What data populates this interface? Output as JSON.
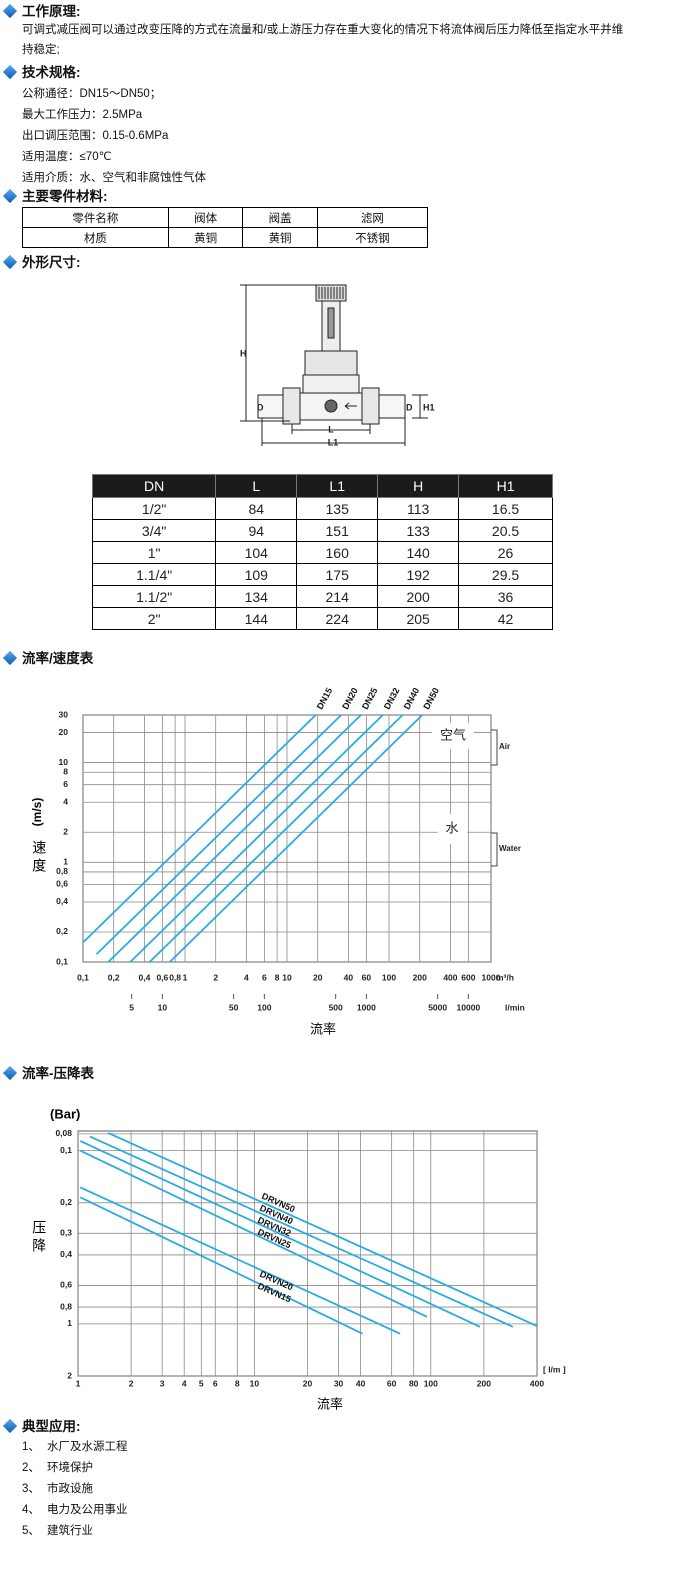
{
  "principle": {
    "heading": "工作原理:",
    "text": "可调式减压阀可以通过改变压降的方式在流量和/或上游压力存在重大变化的情况下将流体阀后压力降低至指定水平并维持稳定;"
  },
  "specs": {
    "heading": "技术规格:",
    "items": [
      "公称通径：DN15～DN50；",
      "最大工作压力：2.5MPa",
      "出口调压范围：0.15-0.6MPa",
      "适用温度：≤70℃",
      "适用介质：水、空气和非腐蚀性气体"
    ]
  },
  "materials": {
    "heading": "主要零件材料:",
    "rows": [
      [
        "零件名称",
        "阀体",
        "阀盖",
        "滤网"
      ],
      [
        "材质",
        "黄铜",
        "黄铜",
        "不锈钢"
      ]
    ]
  },
  "dimensions": {
    "heading": "外形尺寸:",
    "diagram_labels": [
      "H",
      "D",
      "L",
      "L1",
      "D",
      "H1"
    ],
    "table": {
      "rows": [
        [
          "DN",
          "L",
          "L1",
          "H",
          "H1"
        ],
        [
          "1/2\"",
          "84",
          "135",
          "113",
          "16.5"
        ],
        [
          "3/4\"",
          "94",
          "151",
          "133",
          "20.5"
        ],
        [
          "1\"",
          "104",
          "160",
          "140",
          "26"
        ],
        [
          "1.1/4\"",
          "109",
          "175",
          "192",
          "29.5"
        ],
        [
          "1.1/2\"",
          "134",
          "214",
          "200",
          "36"
        ],
        [
          "2\"",
          "144",
          "224",
          "205",
          "42"
        ]
      ]
    }
  },
  "chart_data": [
    {
      "type": "line",
      "title": "流率/速度表",
      "xlabel": "流率",
      "x_unit": "m³/h",
      "ylabel": "速度",
      "y_unit": "(m/s)",
      "xscale": "log",
      "yscale": "log",
      "grid": true,
      "xlim": [
        0.1,
        1000
      ],
      "ylim": [
        0.1,
        30
      ],
      "xticks": [
        {
          "value": 0.1,
          "label": "0,1"
        },
        {
          "value": 0.2,
          "label": "0,2"
        },
        {
          "value": 0.4,
          "label": "0,4"
        },
        {
          "value": 0.6,
          "label": "0,6"
        },
        {
          "value": 0.8,
          "label": "0,8"
        },
        1,
        2,
        4,
        6,
        8,
        10,
        20,
        40,
        60,
        100,
        200,
        400,
        600,
        1000
      ],
      "x2_unit": "l/min",
      "x2lim": [
        1.667,
        16667
      ],
      "x2ticks": [
        5,
        10,
        50,
        100,
        500,
        1000,
        5000,
        10000
      ],
      "yticks": [
        {
          "value": 0.1,
          "label": "0,1"
        },
        {
          "value": 0.2,
          "label": "0,2"
        },
        {
          "value": 0.4,
          "label": "0,4"
        },
        {
          "value": 0.6,
          "label": "0,6"
        },
        {
          "value": 0.8,
          "label": "0,8"
        },
        1,
        2,
        4,
        6,
        8,
        10,
        20,
        30
      ],
      "annotations": [
        "空气",
        "水",
        "Air",
        "Water"
      ],
      "series": [
        {
          "name": "DN15",
          "color": "#29abe2",
          "x": [
            0.1,
            19.1
          ],
          "values": [
            0.157,
            30
          ]
        },
        {
          "name": "DN20",
          "color": "#29abe2",
          "x": [
            0.136,
            34
          ],
          "values": [
            0.12,
            30
          ]
        },
        {
          "name": "DN25",
          "color": "#29abe2",
          "x": [
            0.177,
            53
          ],
          "values": [
            0.1,
            30
          ]
        },
        {
          "name": "DN32",
          "color": "#29abe2",
          "x": [
            0.29,
            87
          ],
          "values": [
            0.1,
            30
          ]
        },
        {
          "name": "DN40",
          "color": "#29abe2",
          "x": [
            0.45,
            136
          ],
          "values": [
            0.1,
            30
          ]
        },
        {
          "name": "DN50",
          "color": "#29abe2",
          "x": [
            0.71,
            212
          ],
          "values": [
            0.1,
            30
          ]
        }
      ]
    },
    {
      "type": "line",
      "title": "流率-压降表",
      "xlabel": "流率",
      "x_unit": "[ l/m ]",
      "ylabel": "压降",
      "y_unit": "(Bar)",
      "xscale": "log",
      "yscale": "log",
      "y_inverted": true,
      "grid": true,
      "xlim": [
        1,
        400
      ],
      "ylim": [
        0.077,
        2
      ],
      "xticks": [
        1,
        2,
        3,
        4,
        5,
        6,
        8,
        10,
        20,
        30,
        40,
        60,
        80,
        100,
        200,
        400
      ],
      "yticks": [
        {
          "value": 0.08,
          "label": "0,08"
        },
        {
          "value": 0.1,
          "label": "0,1"
        },
        {
          "value": 0.2,
          "label": "0,2"
        },
        {
          "value": 0.3,
          "label": "0,3"
        },
        {
          "value": 0.4,
          "label": "0,4"
        },
        {
          "value": 0.6,
          "label": "0,6"
        },
        {
          "value": 0.8,
          "label": "0,8"
        },
        1,
        2
      ],
      "series": [
        {
          "name": "DRVN50",
          "color": "#29abe2",
          "x": [
            1.48,
            400
          ],
          "values": [
            0.079,
            1.03
          ]
        },
        {
          "name": "DRVN40",
          "color": "#29abe2",
          "x": [
            1.17,
            292
          ],
          "values": [
            0.083,
            1.04
          ]
        },
        {
          "name": "DRVN32",
          "color": "#29abe2",
          "x": [
            1.03,
            190
          ],
          "values": [
            0.088,
            1.04
          ]
        },
        {
          "name": "DRVN25",
          "color": "#29abe2",
          "x": [
            1.03,
            95
          ],
          "values": [
            0.1,
            0.91
          ]
        },
        {
          "name": "DRVN20",
          "color": "#29abe2",
          "x": [
            1.03,
            67
          ],
          "values": [
            0.163,
            1.14
          ]
        },
        {
          "name": "DRVN15",
          "color": "#29abe2",
          "x": [
            1.03,
            41
          ],
          "values": [
            0.186,
            1.14
          ]
        }
      ]
    }
  ],
  "applications": {
    "heading": "典型应用:",
    "items": [
      [
        "1、",
        "水厂及水源工程"
      ],
      [
        "2、",
        "环境保护"
      ],
      [
        "3、",
        "市政设施"
      ],
      [
        "4、",
        "电力及公用事业"
      ],
      [
        "5、",
        "建筑行业"
      ]
    ]
  }
}
